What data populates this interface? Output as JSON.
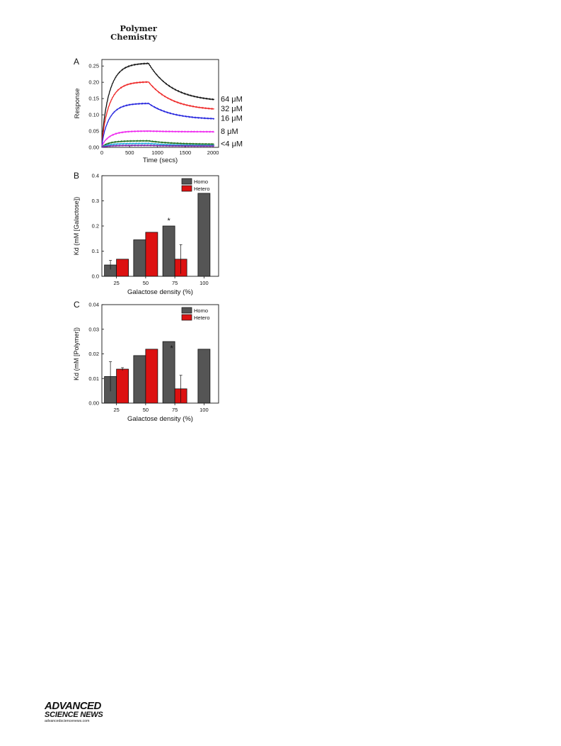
{
  "header": {
    "journal_line1": "Polymer",
    "journal_line2": "Chemistry"
  },
  "footer": {
    "logo_line1": "ADVANCED",
    "logo_line2": "SCIENCE NEWS",
    "logo_line3": "advancedsciencenews.com"
  },
  "chart_data": [
    {
      "panel": "A",
      "type": "line",
      "xlabel": "Time (secs)",
      "ylabel": "Response",
      "xlim": [
        0,
        2100
      ],
      "ylim": [
        0,
        0.27
      ],
      "xticks": [
        0,
        500,
        1000,
        1500,
        2000
      ],
      "yticks": [
        0.0,
        0.05,
        0.1,
        0.15,
        0.2,
        0.25
      ],
      "injection_end": 840,
      "series": [
        {
          "name": "64 μM",
          "color": "#111111",
          "peak": 0.258,
          "end": 0.147
        },
        {
          "name": "32 μM",
          "color": "#ee2222",
          "peak": 0.201,
          "end": 0.118
        },
        {
          "name": "16 μM",
          "color": "#2222dd",
          "peak": 0.135,
          "end": 0.088
        },
        {
          "name": "8 μM",
          "color": "#ee22ee",
          "peak": 0.05,
          "end": 0.048
        },
        {
          "name": "<4 μM",
          "color": "#1a6b1a",
          "peak": 0.02,
          "end": 0.01
        },
        {
          "name": "",
          "color": "#22aadd",
          "peak": 0.012,
          "end": 0.006
        },
        {
          "name": "",
          "color": "#7722aa",
          "peak": 0.006,
          "end": 0.004
        }
      ]
    },
    {
      "panel": "B",
      "type": "bar",
      "xlabel": "Galactose density (%)",
      "ylabel": "Kd (mM [Galactose])",
      "categories": [
        "25",
        "50",
        "75",
        "100"
      ],
      "ylim": [
        0,
        0.4
      ],
      "yticks": [
        0.0,
        0.1,
        0.2,
        0.3,
        0.4
      ],
      "legend_position": "top-right",
      "series": [
        {
          "name": "Homo",
          "color": "#555555",
          "values": [
            0.045,
            0.145,
            0.2,
            0.33
          ],
          "errors": [
            0.018,
            0,
            0,
            0
          ]
        },
        {
          "name": "Hetero",
          "color": "#dd1111",
          "values": [
            0.068,
            0.175,
            0.068,
            null
          ],
          "errors": [
            0,
            0,
            0.058,
            0
          ]
        }
      ],
      "annotations": [
        {
          "text": "*",
          "category": "75"
        }
      ]
    },
    {
      "panel": "C",
      "type": "bar",
      "xlabel": "Galactose density (%)",
      "ylabel": "Kd (mM [Polymer])",
      "categories": [
        "25",
        "50",
        "75",
        "100"
      ],
      "ylim": [
        0,
        0.04
      ],
      "yticks": [
        0.0,
        0.01,
        0.02,
        0.03,
        0.04
      ],
      "legend_position": "top-right",
      "series": [
        {
          "name": "Homo",
          "color": "#555555",
          "values": [
            0.0108,
            0.0193,
            0.025,
            0.0219
          ],
          "errors": [
            0.006,
            0,
            0,
            0
          ]
        },
        {
          "name": "Hetero",
          "color": "#dd1111",
          "values": [
            0.0138,
            0.0219,
            0.0058,
            null
          ],
          "errors": [
            0.0006,
            0,
            0.0055,
            0
          ]
        }
      ],
      "annotations": [
        {
          "text": "*",
          "category": "75"
        }
      ]
    }
  ]
}
